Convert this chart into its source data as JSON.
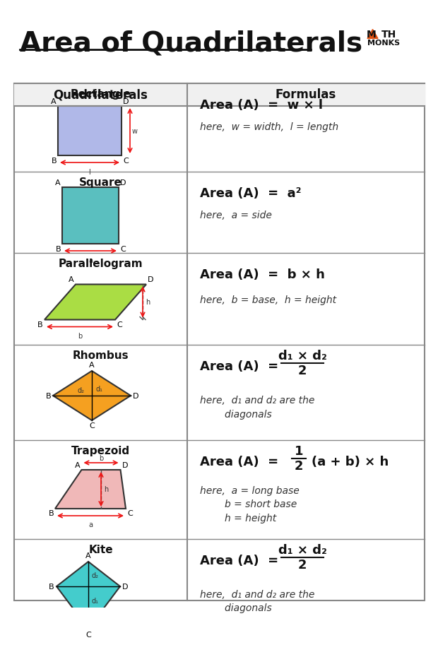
{
  "title": "Area of Quadrilaterals",
  "col1_header": "Quadrilaterals",
  "col2_header": "Formulas",
  "bg_color": "#ffffff",
  "title_color": "#111111",
  "header_bg": "#e8e8e8",
  "row_bg": "#ffffff",
  "grid_color": "#aaaaaa",
  "rows": [
    {
      "name": "Rectangle",
      "shape_color": "#b0b0e8",
      "formula_main": "Area (A)  =  w × l",
      "formula_sub": "here,  w = width,  l = length"
    },
    {
      "name": "Square",
      "shape_color": "#5abfbf",
      "formula_main": "Area (A)  =  a²",
      "formula_sub": "here,  a = side"
    },
    {
      "name": "Parallelogram",
      "shape_color": "#aadd44",
      "formula_main": "Area (A)  =  b × h",
      "formula_sub": "here,  b = base,  h = height"
    },
    {
      "name": "Rhombus",
      "shape_color": "#f5a020",
      "formula_main": "Area (A)  =",
      "formula_frac_num": "d₁ × d₂",
      "formula_frac_den": "2",
      "formula_sub": "here,  d₁ and d₂ are the\n        diagonals"
    },
    {
      "name": "Trapezoid",
      "shape_color": "#f0b8b8",
      "formula_main": "Area (A)  =",
      "formula_frac_num": "1",
      "formula_frac_den": "2",
      "formula_extra": "(a + b) × h",
      "formula_sub": "here,  a = long base\n        b = short base\n        h = height"
    },
    {
      "name": "Kite",
      "shape_color": "#44cccc",
      "formula_main": "Area (A)  =",
      "formula_frac_num": "d₁ × d₂",
      "formula_frac_den": "2",
      "formula_sub": "here,  d₁ and d₂ are the\n        diagonals"
    }
  ],
  "red": "#ee1111",
  "orange_logo": "#e05010",
  "dark": "#111111"
}
